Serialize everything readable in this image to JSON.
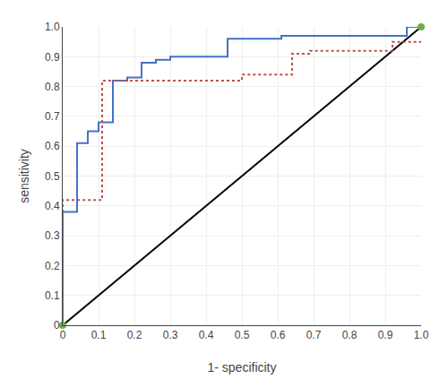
{
  "chart_data": {
    "type": "line",
    "xlabel": "1- specificity",
    "ylabel": "sensitivity",
    "xlim": [
      0,
      1
    ],
    "ylim": [
      0,
      1
    ],
    "xticks": [
      0,
      0.1,
      0.2,
      0.3,
      0.4,
      0.5,
      0.6,
      0.7,
      0.8,
      0.9,
      {
        "value": 1.0,
        "label": "1.0"
      }
    ],
    "yticks": [
      0,
      0.1,
      0.2,
      0.3,
      0.4,
      0.5,
      0.6,
      0.7,
      0.8,
      0.9,
      {
        "value": 1.0,
        "label": "1.0"
      }
    ],
    "grid": true,
    "series": [
      {
        "type": "line",
        "color": "#000000",
        "line_style": "solid",
        "x": [
          0.0,
          1.0
        ],
        "values": [
          0.0,
          1.0
        ]
      },
      {
        "type": "line",
        "color": "#4472C4",
        "line_style": "solid",
        "x": [
          0.0,
          0.0,
          0.04,
          0.04,
          0.07,
          0.07,
          0.1,
          0.1,
          0.14,
          0.14,
          0.18,
          0.18,
          0.22,
          0.22,
          0.26,
          0.26,
          0.3,
          0.3,
          0.46,
          0.46,
          0.61,
          0.61,
          0.93,
          0.93,
          0.96,
          0.96,
          1.0
        ],
        "values": [
          0.0,
          0.38,
          0.38,
          0.61,
          0.61,
          0.65,
          0.65,
          0.68,
          0.68,
          0.82,
          0.82,
          0.83,
          0.83,
          0.88,
          0.88,
          0.89,
          0.89,
          0.9,
          0.9,
          0.96,
          0.96,
          0.97,
          0.97,
          0.97,
          0.97,
          1.0,
          1.0
        ]
      },
      {
        "type": "line",
        "color": "#C0504D",
        "line_style": "dotted",
        "x": [
          0.0,
          0.0,
          0.11,
          0.11,
          0.15,
          0.15,
          0.5,
          0.5,
          0.64,
          0.64,
          0.69,
          0.69,
          0.92,
          0.92,
          0.96,
          0.96,
          1.0
        ],
        "values": [
          0.0,
          0.42,
          0.42,
          0.82,
          0.82,
          0.82,
          0.82,
          0.84,
          0.84,
          0.91,
          0.91,
          0.92,
          0.92,
          0.95,
          0.95,
          0.95,
          0.95
        ]
      },
      {
        "type": "scatter",
        "color": "#70AD47",
        "marker": "circle",
        "x": [
          0.0,
          1.0
        ],
        "values": [
          0.0,
          1.0
        ]
      }
    ]
  }
}
